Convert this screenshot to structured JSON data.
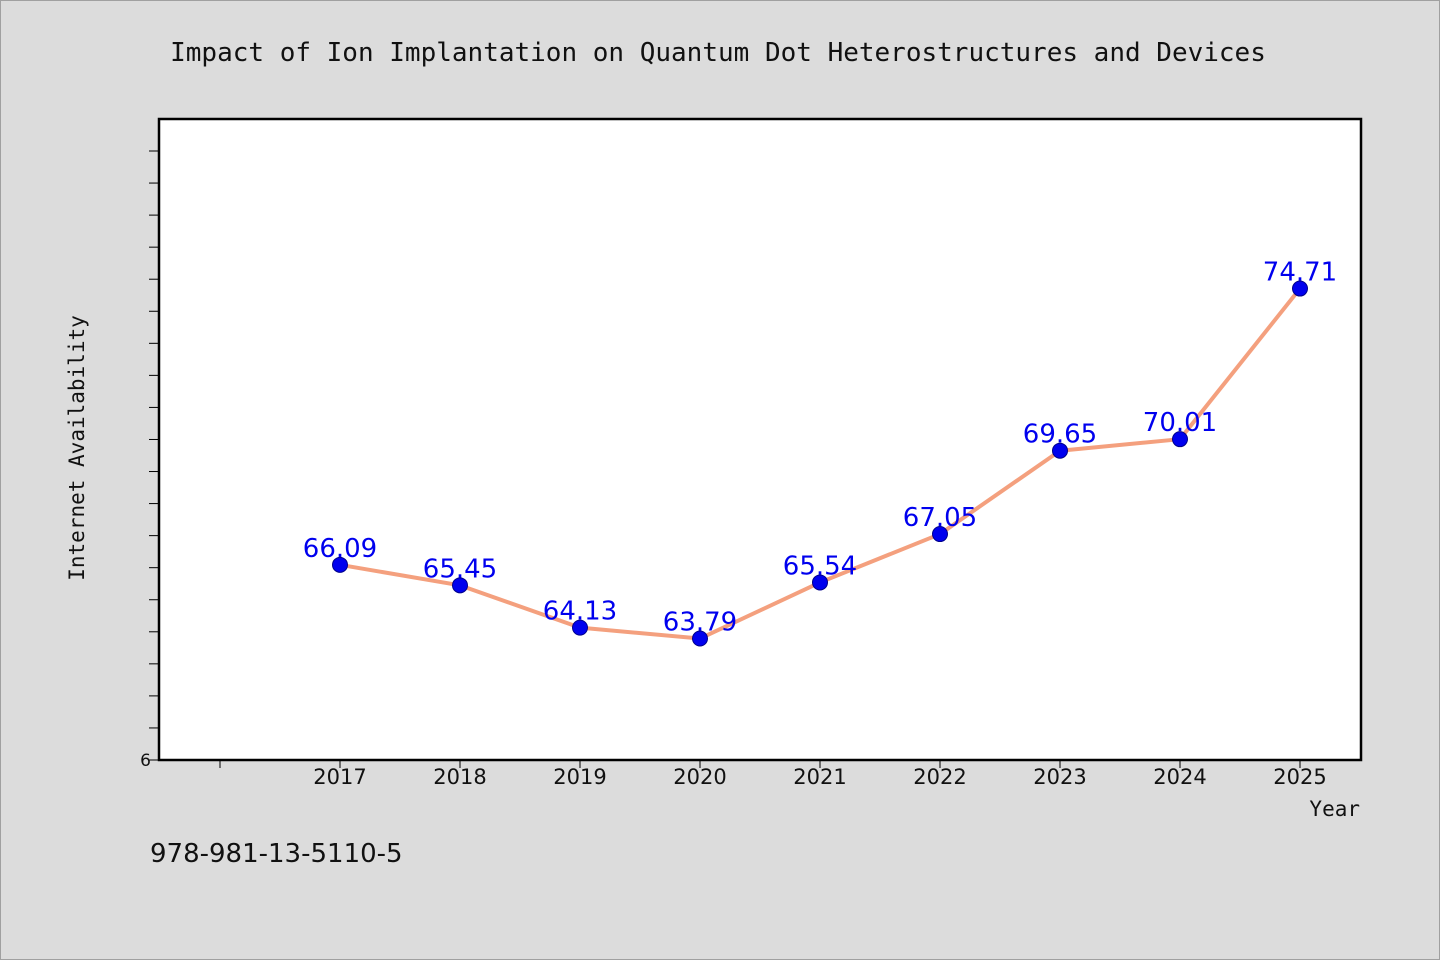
{
  "chart_data": {
    "type": "line",
    "title": "Impact of Ion Implantation on Quantum Dot Heterostructures and Devices",
    "xlabel": "Year",
    "ylabel": "Internet Availability",
    "categories": [
      "2017",
      "2018",
      "2019",
      "2020",
      "2021",
      "2022",
      "2023",
      "2024",
      "2025"
    ],
    "series": [
      {
        "values": [
          66.09,
          65.45,
          64.13,
          63.79,
          65.54,
          67.05,
          69.65,
          70.01,
          74.71
        ],
        "labels": [
          "66.09",
          "65.45",
          "64.13",
          "63.79",
          "65.54",
          "67.05",
          "69.65",
          "70.01",
          "74.71"
        ]
      }
    ],
    "y_tick_labels": [
      "6"
    ],
    "ylim": [
      60,
      80
    ],
    "grid": false,
    "line_color": "#f4a07e",
    "marker_color": "#0000ee",
    "label_color": "#0000ee"
  },
  "footer": {
    "isbn": "978-981-13-5110-5"
  }
}
